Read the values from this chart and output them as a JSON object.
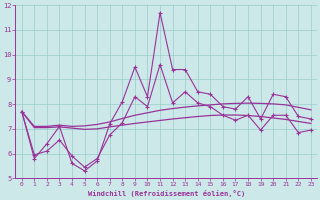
{
  "xlabel": "Windchill (Refroidissement éolien,°C)",
  "bg_color": "#cce8e8",
  "grid_color": "#99cccc",
  "line_color": "#993399",
  "xlim": [
    -0.5,
    23.5
  ],
  "ylim": [
    5,
    12
  ],
  "xticks": [
    0,
    1,
    2,
    3,
    4,
    5,
    6,
    7,
    8,
    9,
    10,
    11,
    12,
    13,
    14,
    15,
    16,
    17,
    18,
    19,
    20,
    21,
    22,
    23
  ],
  "yticks": [
    5,
    6,
    7,
    8,
    9,
    10,
    11,
    12
  ],
  "line1_y": [
    7.7,
    5.8,
    6.4,
    7.1,
    5.6,
    5.3,
    5.7,
    7.2,
    8.1,
    9.5,
    8.3,
    11.7,
    9.4,
    9.4,
    8.5,
    8.4,
    7.9,
    7.8,
    8.3,
    7.4,
    8.4,
    8.3,
    7.5,
    7.4
  ],
  "line2_y": [
    7.7,
    7.1,
    7.1,
    7.15,
    7.1,
    7.12,
    7.18,
    7.28,
    7.42,
    7.55,
    7.65,
    7.75,
    7.82,
    7.88,
    7.93,
    7.97,
    8.01,
    8.03,
    8.04,
    8.03,
    8.01,
    7.97,
    7.87,
    7.77
  ],
  "line3_y": [
    7.7,
    7.05,
    7.05,
    7.08,
    7.03,
    6.98,
    7.0,
    7.08,
    7.15,
    7.22,
    7.28,
    7.34,
    7.4,
    7.45,
    7.5,
    7.54,
    7.56,
    7.56,
    7.54,
    7.5,
    7.44,
    7.38,
    7.3,
    7.22
  ],
  "line4_y": [
    7.7,
    5.95,
    6.1,
    6.55,
    5.9,
    5.45,
    5.8,
    6.75,
    7.25,
    8.3,
    7.9,
    9.6,
    8.05,
    8.5,
    8.05,
    7.9,
    7.55,
    7.35,
    7.55,
    6.95,
    7.55,
    7.55,
    6.85,
    6.95
  ]
}
